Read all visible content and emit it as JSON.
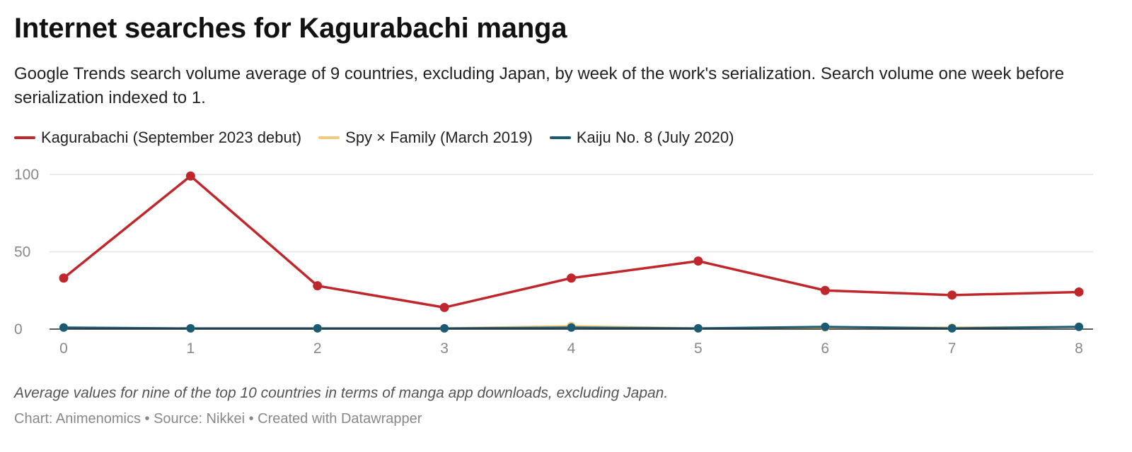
{
  "title": "Internet searches for Kagurabachi manga",
  "subtitle": "Google Trends search volume average of 9 countries, excluding Japan, by week of the work's serialization. Search volume one week before serialization indexed to 1.",
  "note": "Average values for nine of the top 10 countries in terms of manga app downloads, excluding Japan.",
  "footer": "Chart: Animenomics • Source: Nikkei • Created with Datawrapper",
  "chart_data": {
    "type": "line",
    "title": "Internet searches for Kagurabachi manga",
    "subtitle": "Google Trends search volume average of 9 countries, excluding Japan, by week of the work's serialization. Search volume one week before serialization indexed to 1.",
    "x": [
      0,
      1,
      2,
      3,
      4,
      5,
      6,
      7,
      8
    ],
    "x_tick_labels": [
      "0",
      "1",
      "2",
      "3",
      "4",
      "5",
      "6",
      "7",
      "8"
    ],
    "y_ticks": [
      0,
      50,
      100
    ],
    "y_tick_labels": [
      "0",
      "50",
      "100"
    ],
    "ylim": [
      0,
      100
    ],
    "xlabel": "",
    "ylabel": "",
    "grid": true,
    "legend_position": "top-left",
    "series": [
      {
        "name": "Kagurabachi (September 2023 debut)",
        "color": "#c0272d",
        "values": [
          33,
          99,
          28,
          14,
          33,
          44,
          25,
          22,
          24
        ]
      },
      {
        "name": "Spy × Family (March 2019)",
        "color": "#f5c97a",
        "values": [
          1,
          0.5,
          0.5,
          0.5,
          2,
          0.5,
          1,
          1,
          1.5
        ]
      },
      {
        "name": "Kaiju No. 8 (July 2020)",
        "color": "#1b5a73",
        "values": [
          1,
          0.5,
          0.5,
          0.5,
          1,
          0.5,
          1.5,
          0.5,
          1.5
        ]
      }
    ]
  }
}
